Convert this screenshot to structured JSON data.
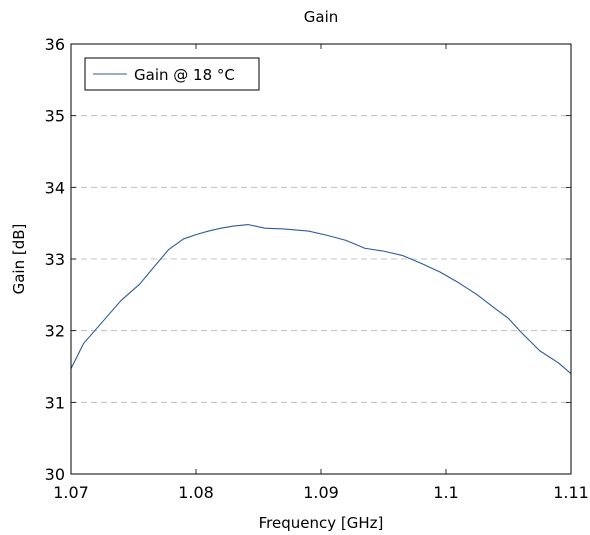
{
  "chart_data": {
    "type": "line",
    "title": "Gain",
    "xlabel": "Frequency [GHz]",
    "ylabel": "Gain [dB]",
    "xlim": [
      1.07,
      1.11
    ],
    "ylim": [
      30,
      36
    ],
    "x_ticks": [
      1.07,
      1.08,
      1.09,
      1.1,
      1.11
    ],
    "x_tick_labels": [
      "1.07",
      "1.08",
      "1.09",
      "1.1",
      "1.11"
    ],
    "y_ticks": [
      30,
      31,
      32,
      33,
      34,
      35,
      36
    ],
    "y_tick_labels": [
      "30",
      "31",
      "32",
      "33",
      "34",
      "35",
      "36"
    ],
    "grid": "horizontal-dashed",
    "legend_position": "top-left",
    "series": [
      {
        "name": "Gain @ 18 °C",
        "color": "#2b5c9c",
        "x": [
          1.07,
          1.071,
          1.0725,
          1.074,
          1.0755,
          1.0765,
          1.0778,
          1.079,
          1.08,
          1.081,
          1.082,
          1.083,
          1.0842,
          1.0855,
          1.087,
          1.089,
          1.0905,
          1.092,
          1.0935,
          1.095,
          1.0965,
          1.098,
          1.0995,
          1.101,
          1.1025,
          1.104,
          1.105,
          1.106,
          1.1075,
          1.109,
          1.11
        ],
        "y": [
          31.47,
          31.82,
          32.12,
          32.42,
          32.65,
          32.86,
          33.13,
          33.28,
          33.34,
          33.39,
          33.43,
          33.46,
          33.48,
          33.43,
          33.42,
          33.39,
          33.33,
          33.26,
          33.15,
          33.11,
          33.05,
          32.94,
          32.82,
          32.67,
          32.5,
          32.3,
          32.17,
          31.98,
          31.72,
          31.55,
          31.4
        ]
      }
    ]
  }
}
